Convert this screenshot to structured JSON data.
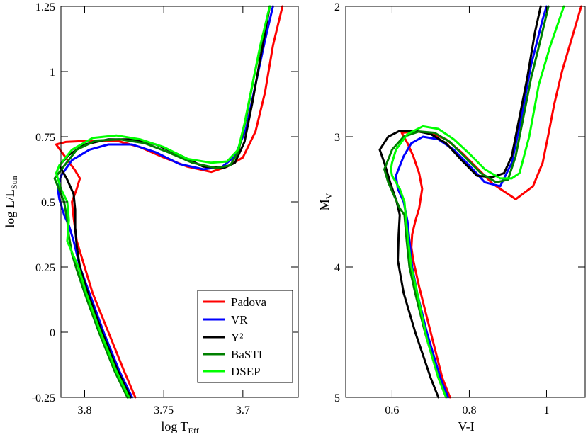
{
  "chart_data": [
    {
      "type": "line",
      "title": "",
      "xlabel": "log T",
      "xlabel_sub": "Eff",
      "ylabel": "log L/L",
      "ylabel_sub": "Sun",
      "xlim": [
        3.815,
        3.665
      ],
      "ylim": [
        -0.25,
        1.25
      ],
      "xticks": [
        3.8,
        3.75,
        3.7
      ],
      "xtick_labels": [
        "3.8",
        "3.75",
        "3.7"
      ],
      "yticks": [
        -0.25,
        0,
        0.25,
        0.5,
        0.75,
        1,
        1.25
      ],
      "ytick_labels": [
        "-0.25",
        "0",
        "0.25",
        "0.5",
        "0.75",
        "1",
        "1.25"
      ],
      "legend_position": "bottom-right",
      "series": [
        {
          "name": "Padova",
          "color": "#ff0000",
          "points": [
            [
              3.768,
              -0.25
            ],
            [
              3.775,
              -0.15
            ],
            [
              3.785,
              0.0
            ],
            [
              3.795,
              0.15
            ],
            [
              3.8,
              0.25
            ],
            [
              3.805,
              0.35
            ],
            [
              3.807,
              0.44
            ],
            [
              3.808,
              0.5
            ],
            [
              3.805,
              0.55
            ],
            [
              3.803,
              0.59
            ],
            [
              3.806,
              0.62
            ],
            [
              3.812,
              0.67
            ],
            [
              3.818,
              0.72
            ],
            [
              3.812,
              0.73
            ],
            [
              3.795,
              0.735
            ],
            [
              3.78,
              0.735
            ],
            [
              3.765,
              0.71
            ],
            [
              3.75,
              0.67
            ],
            [
              3.735,
              0.635
            ],
            [
              3.72,
              0.615
            ],
            [
              3.71,
              0.635
            ],
            [
              3.7,
              0.67
            ],
            [
              3.692,
              0.77
            ],
            [
              3.686,
              0.92
            ],
            [
              3.681,
              1.1
            ],
            [
              3.675,
              1.25
            ]
          ]
        },
        {
          "name": "VR",
          "color": "#0000ff",
          "points": [
            [
              3.77,
              -0.25
            ],
            [
              3.778,
              -0.15
            ],
            [
              3.788,
              0.0
            ],
            [
              3.797,
              0.15
            ],
            [
              3.803,
              0.25
            ],
            [
              3.807,
              0.35
            ],
            [
              3.81,
              0.41
            ],
            [
              3.813,
              0.45
            ],
            [
              3.816,
              0.51
            ],
            [
              3.817,
              0.55
            ],
            [
              3.815,
              0.6
            ],
            [
              3.808,
              0.66
            ],
            [
              3.797,
              0.7
            ],
            [
              3.785,
              0.72
            ],
            [
              3.77,
              0.72
            ],
            [
              3.755,
              0.69
            ],
            [
              3.74,
              0.645
            ],
            [
              3.725,
              0.625
            ],
            [
              3.713,
              0.635
            ],
            [
              3.705,
              0.675
            ],
            [
              3.698,
              0.78
            ],
            [
              3.692,
              0.95
            ],
            [
              3.686,
              1.12
            ],
            [
              3.681,
              1.25
            ]
          ]
        },
        {
          "name": "Y²",
          "color": "#000000",
          "points": [
            [
              3.771,
              -0.25
            ],
            [
              3.779,
              -0.15
            ],
            [
              3.789,
              0.0
            ],
            [
              3.798,
              0.15
            ],
            [
              3.803,
              0.25
            ],
            [
              3.805,
              0.33
            ],
            [
              3.806,
              0.4
            ],
            [
              3.806,
              0.47
            ],
            [
              3.807,
              0.53
            ],
            [
              3.811,
              0.585
            ],
            [
              3.816,
              0.64
            ],
            [
              3.81,
              0.68
            ],
            [
              3.8,
              0.72
            ],
            [
              3.785,
              0.74
            ],
            [
              3.77,
              0.74
            ],
            [
              3.755,
              0.72
            ],
            [
              3.74,
              0.68
            ],
            [
              3.725,
              0.635
            ],
            [
              3.712,
              0.63
            ],
            [
              3.705,
              0.65
            ],
            [
              3.699,
              0.73
            ],
            [
              3.694,
              0.88
            ],
            [
              3.689,
              1.05
            ],
            [
              3.683,
              1.25
            ]
          ]
        },
        {
          "name": "BaSTI",
          "color": "#008000",
          "points": [
            [
              3.773,
              -0.25
            ],
            [
              3.781,
              -0.15
            ],
            [
              3.791,
              0.0
            ],
            [
              3.8,
              0.15
            ],
            [
              3.805,
              0.24
            ],
            [
              3.808,
              0.3
            ],
            [
              3.81,
              0.37
            ],
            [
              3.811,
              0.43
            ],
            [
              3.813,
              0.5
            ],
            [
              3.819,
              0.59
            ],
            [
              3.814,
              0.63
            ],
            [
              3.805,
              0.7
            ],
            [
              3.793,
              0.735
            ],
            [
              3.778,
              0.74
            ],
            [
              3.762,
              0.725
            ],
            [
              3.747,
              0.69
            ],
            [
              3.732,
              0.65
            ],
            [
              3.717,
              0.63
            ],
            [
              3.708,
              0.64
            ],
            [
              3.703,
              0.69
            ],
            [
              3.698,
              0.82
            ],
            [
              3.693,
              0.98
            ],
            [
              3.688,
              1.12
            ],
            [
              3.683,
              1.25
            ]
          ]
        },
        {
          "name": "DSEP",
          "color": "#00ff00",
          "points": [
            [
              3.772,
              -0.25
            ],
            [
              3.78,
              -0.15
            ],
            [
              3.79,
              0.0
            ],
            [
              3.799,
              0.15
            ],
            [
              3.804,
              0.25
            ],
            [
              3.809,
              0.32
            ],
            [
              3.811,
              0.35
            ],
            [
              3.81,
              0.43
            ],
            [
              3.811,
              0.5
            ],
            [
              3.815,
              0.55
            ],
            [
              3.818,
              0.61
            ],
            [
              3.816,
              0.64
            ],
            [
              3.808,
              0.7
            ],
            [
              3.795,
              0.745
            ],
            [
              3.78,
              0.755
            ],
            [
              3.765,
              0.74
            ],
            [
              3.75,
              0.71
            ],
            [
              3.735,
              0.665
            ],
            [
              3.72,
              0.65
            ],
            [
              3.71,
              0.655
            ],
            [
              3.703,
              0.7
            ],
            [
              3.699,
              0.8
            ],
            [
              3.694,
              0.95
            ],
            [
              3.689,
              1.1
            ],
            [
              3.683,
              1.25
            ]
          ]
        }
      ]
    },
    {
      "type": "line",
      "title": "",
      "xlabel": "V-I",
      "ylabel": "M",
      "ylabel_sub": "V",
      "xlim": [
        0.48,
        1.1
      ],
      "ylim": [
        5,
        2
      ],
      "xticks": [
        0.6,
        0.8,
        1.0
      ],
      "xtick_labels": [
        "0.6",
        "0.8",
        "1"
      ],
      "yticks": [
        2,
        3,
        4,
        5
      ],
      "ytick_labels": [
        "2",
        "3",
        "4",
        "5"
      ],
      "series": [
        {
          "name": "Padova",
          "color": "#ff0000",
          "points": [
            [
              0.75,
              5.0
            ],
            [
              0.73,
              4.85
            ],
            [
              0.7,
              4.5
            ],
            [
              0.67,
              4.15
            ],
            [
              0.655,
              3.95
            ],
            [
              0.65,
              3.85
            ],
            [
              0.652,
              3.75
            ],
            [
              0.66,
              3.65
            ],
            [
              0.67,
              3.55
            ],
            [
              0.678,
              3.4
            ],
            [
              0.67,
              3.28
            ],
            [
              0.655,
              3.15
            ],
            [
              0.64,
              3.05
            ],
            [
              0.625,
              2.97
            ],
            [
              0.66,
              2.96
            ],
            [
              0.7,
              2.97
            ],
            [
              0.74,
              3.02
            ],
            [
              0.78,
              3.12
            ],
            [
              0.82,
              3.24
            ],
            [
              0.86,
              3.36
            ],
            [
              0.92,
              3.48
            ],
            [
              0.965,
              3.38
            ],
            [
              0.99,
              3.2
            ],
            [
              1.005,
              2.98
            ],
            [
              1.02,
              2.75
            ],
            [
              1.04,
              2.5
            ],
            [
              1.06,
              2.3
            ],
            [
              1.09,
              2.0
            ]
          ]
        },
        {
          "name": "VR",
          "color": "#0000ff",
          "points": [
            [
              0.745,
              5.0
            ],
            [
              0.725,
              4.85
            ],
            [
              0.69,
              4.5
            ],
            [
              0.665,
              4.2
            ],
            [
              0.652,
              4.0
            ],
            [
              0.645,
              3.8
            ],
            [
              0.64,
              3.65
            ],
            [
              0.63,
              3.5
            ],
            [
              0.615,
              3.4
            ],
            [
              0.61,
              3.3
            ],
            [
              0.63,
              3.15
            ],
            [
              0.65,
              3.05
            ],
            [
              0.68,
              3.0
            ],
            [
              0.72,
              3.02
            ],
            [
              0.76,
              3.1
            ],
            [
              0.8,
              3.22
            ],
            [
              0.84,
              3.35
            ],
            [
              0.88,
              3.38
            ],
            [
              0.91,
              3.2
            ],
            [
              0.935,
              2.85
            ],
            [
              0.96,
              2.45
            ],
            [
              0.99,
              2.1
            ],
            [
              1.0,
              2.0
            ]
          ]
        },
        {
          "name": "Y²",
          "color": "#000000",
          "points": [
            [
              0.72,
              5.0
            ],
            [
              0.7,
              4.85
            ],
            [
              0.66,
              4.5
            ],
            [
              0.63,
              4.2
            ],
            [
              0.615,
              3.95
            ],
            [
              0.617,
              3.75
            ],
            [
              0.62,
              3.6
            ],
            [
              0.612,
              3.5
            ],
            [
              0.595,
              3.35
            ],
            [
              0.58,
              3.2
            ],
            [
              0.568,
              3.1
            ],
            [
              0.59,
              3.0
            ],
            [
              0.62,
              2.955
            ],
            [
              0.66,
              2.955
            ],
            [
              0.7,
              2.98
            ],
            [
              0.74,
              3.05
            ],
            [
              0.78,
              3.18
            ],
            [
              0.82,
              3.3
            ],
            [
              0.86,
              3.31
            ],
            [
              0.89,
              3.28
            ],
            [
              0.91,
              3.15
            ],
            [
              0.93,
              2.85
            ],
            [
              0.95,
              2.55
            ],
            [
              0.97,
              2.2
            ],
            [
              0.985,
              2.0
            ]
          ]
        },
        {
          "name": "BaSTI",
          "color": "#008000",
          "points": [
            [
              0.74,
              5.0
            ],
            [
              0.72,
              4.85
            ],
            [
              0.685,
              4.5
            ],
            [
              0.66,
              4.2
            ],
            [
              0.645,
              4.0
            ],
            [
              0.638,
              3.8
            ],
            [
              0.632,
              3.6
            ],
            [
              0.62,
              3.55
            ],
            [
              0.605,
              3.45
            ],
            [
              0.59,
              3.35
            ],
            [
              0.58,
              3.25
            ],
            [
              0.6,
              3.1
            ],
            [
              0.63,
              3.0
            ],
            [
              0.67,
              2.96
            ],
            [
              0.71,
              2.97
            ],
            [
              0.75,
              3.04
            ],
            [
              0.79,
              3.16
            ],
            [
              0.83,
              3.28
            ],
            [
              0.87,
              3.35
            ],
            [
              0.9,
              3.33
            ],
            [
              0.92,
              3.15
            ],
            [
              0.94,
              2.85
            ],
            [
              0.96,
              2.55
            ],
            [
              0.985,
              2.25
            ],
            [
              1.005,
              2.0
            ]
          ]
        },
        {
          "name": "DSEP",
          "color": "#00ff00",
          "points": [
            [
              0.74,
              5.0
            ],
            [
              0.72,
              4.85
            ],
            [
              0.69,
              4.55
            ],
            [
              0.665,
              4.2
            ],
            [
              0.65,
              4.0
            ],
            [
              0.64,
              3.75
            ],
            [
              0.635,
              3.6
            ],
            [
              0.632,
              3.5
            ],
            [
              0.62,
              3.4
            ],
            [
              0.61,
              3.35
            ],
            [
              0.6,
              3.3
            ],
            [
              0.597,
              3.25
            ],
            [
              0.6,
              3.2
            ],
            [
              0.61,
              3.1
            ],
            [
              0.64,
              2.98
            ],
            [
              0.68,
              2.92
            ],
            [
              0.72,
              2.94
            ],
            [
              0.76,
              3.02
            ],
            [
              0.8,
              3.13
            ],
            [
              0.84,
              3.25
            ],
            [
              0.88,
              3.32
            ],
            [
              0.91,
              3.32
            ],
            [
              0.93,
              3.28
            ],
            [
              0.955,
              3.0
            ],
            [
              0.98,
              2.6
            ],
            [
              1.01,
              2.3
            ],
            [
              1.045,
              2.0
            ]
          ]
        }
      ]
    }
  ]
}
